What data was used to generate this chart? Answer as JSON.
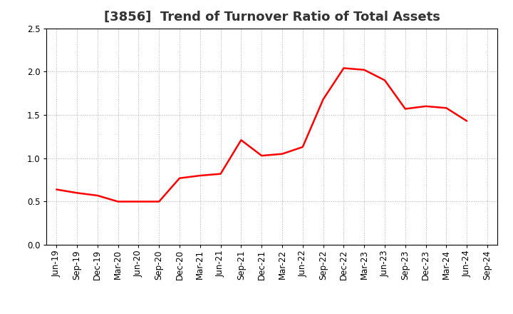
{
  "title": "[3856]  Trend of Turnover Ratio of Total Assets",
  "x_labels": [
    "Jun-19",
    "Sep-19",
    "Dec-19",
    "Mar-20",
    "Jun-20",
    "Sep-20",
    "Dec-20",
    "Mar-21",
    "Jun-21",
    "Sep-21",
    "Dec-21",
    "Mar-22",
    "Jun-22",
    "Sep-22",
    "Dec-22",
    "Mar-23",
    "Jun-23",
    "Sep-23",
    "Dec-23",
    "Mar-24",
    "Jun-24",
    "Sep-24"
  ],
  "y_values": [
    0.64,
    0.6,
    0.57,
    0.5,
    0.5,
    0.5,
    0.77,
    0.8,
    0.82,
    1.21,
    1.03,
    1.05,
    1.13,
    1.68,
    2.04,
    2.02,
    1.9,
    1.57,
    1.6,
    1.58,
    1.43,
    null
  ],
  "line_color": "#ff0000",
  "line_width": 1.8,
  "ylim": [
    0.0,
    2.5
  ],
  "yticks": [
    0.0,
    0.5,
    1.0,
    1.5,
    2.0,
    2.5
  ],
  "background_color": "#ffffff",
  "plot_area_color": "#ffffff",
  "grid_color": "#b0b0b0",
  "title_fontsize": 13,
  "tick_fontsize": 8.5
}
